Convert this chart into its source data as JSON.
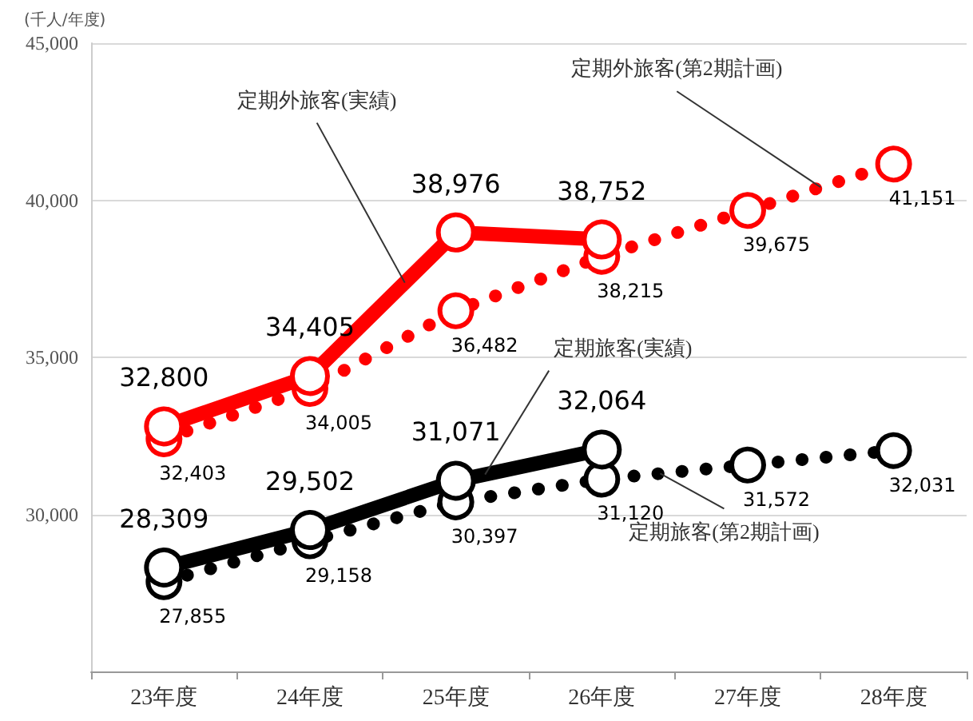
{
  "chart_data": {
    "type": "line",
    "ylabel": "(千人/年度)",
    "categories": [
      "23年度",
      "24年度",
      "25年度",
      "26年度",
      "27年度",
      "28年度"
    ],
    "ylim": [
      25000,
      45000
    ],
    "yticks": [
      {
        "value": 25000,
        "label": null
      },
      {
        "value": 30000,
        "label": "30,000"
      },
      {
        "value": 35000,
        "label": "35,000"
      },
      {
        "value": 40000,
        "label": "40,000"
      },
      {
        "value": 45000,
        "label": "45,000"
      }
    ],
    "grid": "y",
    "marker": "circle",
    "series": [
      {
        "name": "定期外旅客(第2期計画)",
        "color": "#ff0000",
        "line_style": "dotted",
        "values": [
          32403,
          34005,
          36482,
          38215,
          39675,
          41151
        ],
        "value_labels": [
          "32,403",
          "34,005",
          "36,482",
          "38,215",
          "39,675",
          "41,151"
        ]
      },
      {
        "name": "定期旅客(第2期計画)",
        "color": "#000000",
        "line_style": "dotted",
        "values": [
          27855,
          29158,
          30397,
          31120,
          31572,
          32031
        ],
        "value_labels": [
          "27,855",
          "29,158",
          "30,397",
          "31,120",
          "31,572",
          "32,031"
        ]
      },
      {
        "name": "定期外旅客(実績)",
        "color": "#ff0000",
        "line_style": "solid",
        "values": [
          32800,
          34405,
          38976,
          38752,
          null,
          null
        ],
        "value_labels": [
          "32,800",
          "34,405",
          "38,976",
          "38,752",
          null,
          null
        ]
      },
      {
        "name": "定期旅客(実績)",
        "color": "#000000",
        "line_style": "solid",
        "values": [
          28309,
          29502,
          31071,
          32064,
          null,
          null
        ],
        "value_labels": [
          "28,309",
          "29,502",
          "31,071",
          "32,064",
          null,
          null
        ]
      }
    ]
  }
}
